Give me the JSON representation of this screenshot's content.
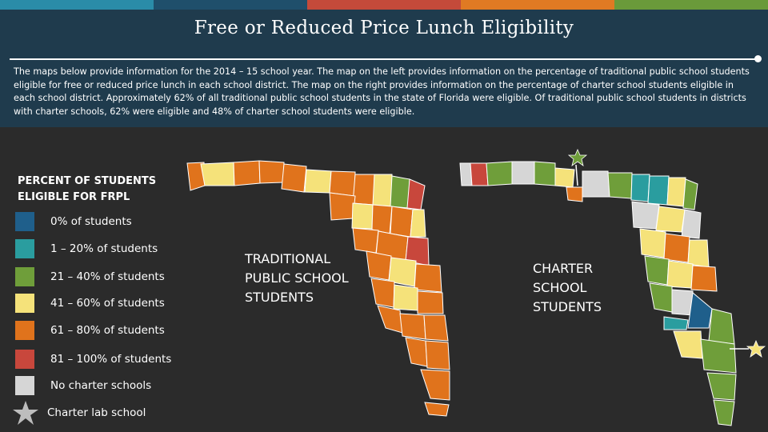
{
  "title": "Free or Reduced Price Lunch Eligibility",
  "description": "The maps below provide information for the 2014 – 15 school year. The map on the left provides information on the percentage of traditional public school students eligible for free or reduced price lunch in each school district. The map on the right provides information on the percentage of charter school students eligible in each school district. Approximately 62% of all traditional public school students in the state of Florida were eligible. Of traditional public school students in districts with charter schools, 62% were eligible and 48% of charter school students were eligible.",
  "legend": {
    "title": "PERCENT OF STUDENTS ELIGIBLE FOR FRPL",
    "items": [
      {
        "label": "0% of students",
        "color": "#1f5f8b"
      },
      {
        "label": "1 – 20% of students",
        "color": "#2a9d9f"
      },
      {
        "label": "21 – 40% of students",
        "color": "#6f9e3a"
      },
      {
        "label": "41 – 60% of students",
        "color": "#f5e27a"
      },
      {
        "label": "61 – 80% of students",
        "color": "#e0731c"
      },
      {
        "label": "81 – 100% of students",
        "color": "#c8473c"
      },
      {
        "label": "No charter schools",
        "color": "#d6d6d6"
      },
      {
        "label": "Charter lab school",
        "color": "#bdbdbd"
      }
    ]
  },
  "maps": {
    "traditional": {
      "label": "TRADITIONAL PUBLIC SCHOOL STUDENTS"
    },
    "charter": {
      "label": "CHARTER SCHOOL STUDENTS"
    }
  },
  "colors": {
    "top_bar": [
      "#2a8ca8",
      "#1f4f6b",
      "#c44a3a",
      "#e07a23",
      "#6a9a3a"
    ],
    "header_bg": "#1f3b4d",
    "body_bg": "#2b2b2b",
    "county_border": "#ffffff",
    "lab_star_green": "#6f9e3a",
    "lab_star_yellow": "#f5e27a"
  }
}
